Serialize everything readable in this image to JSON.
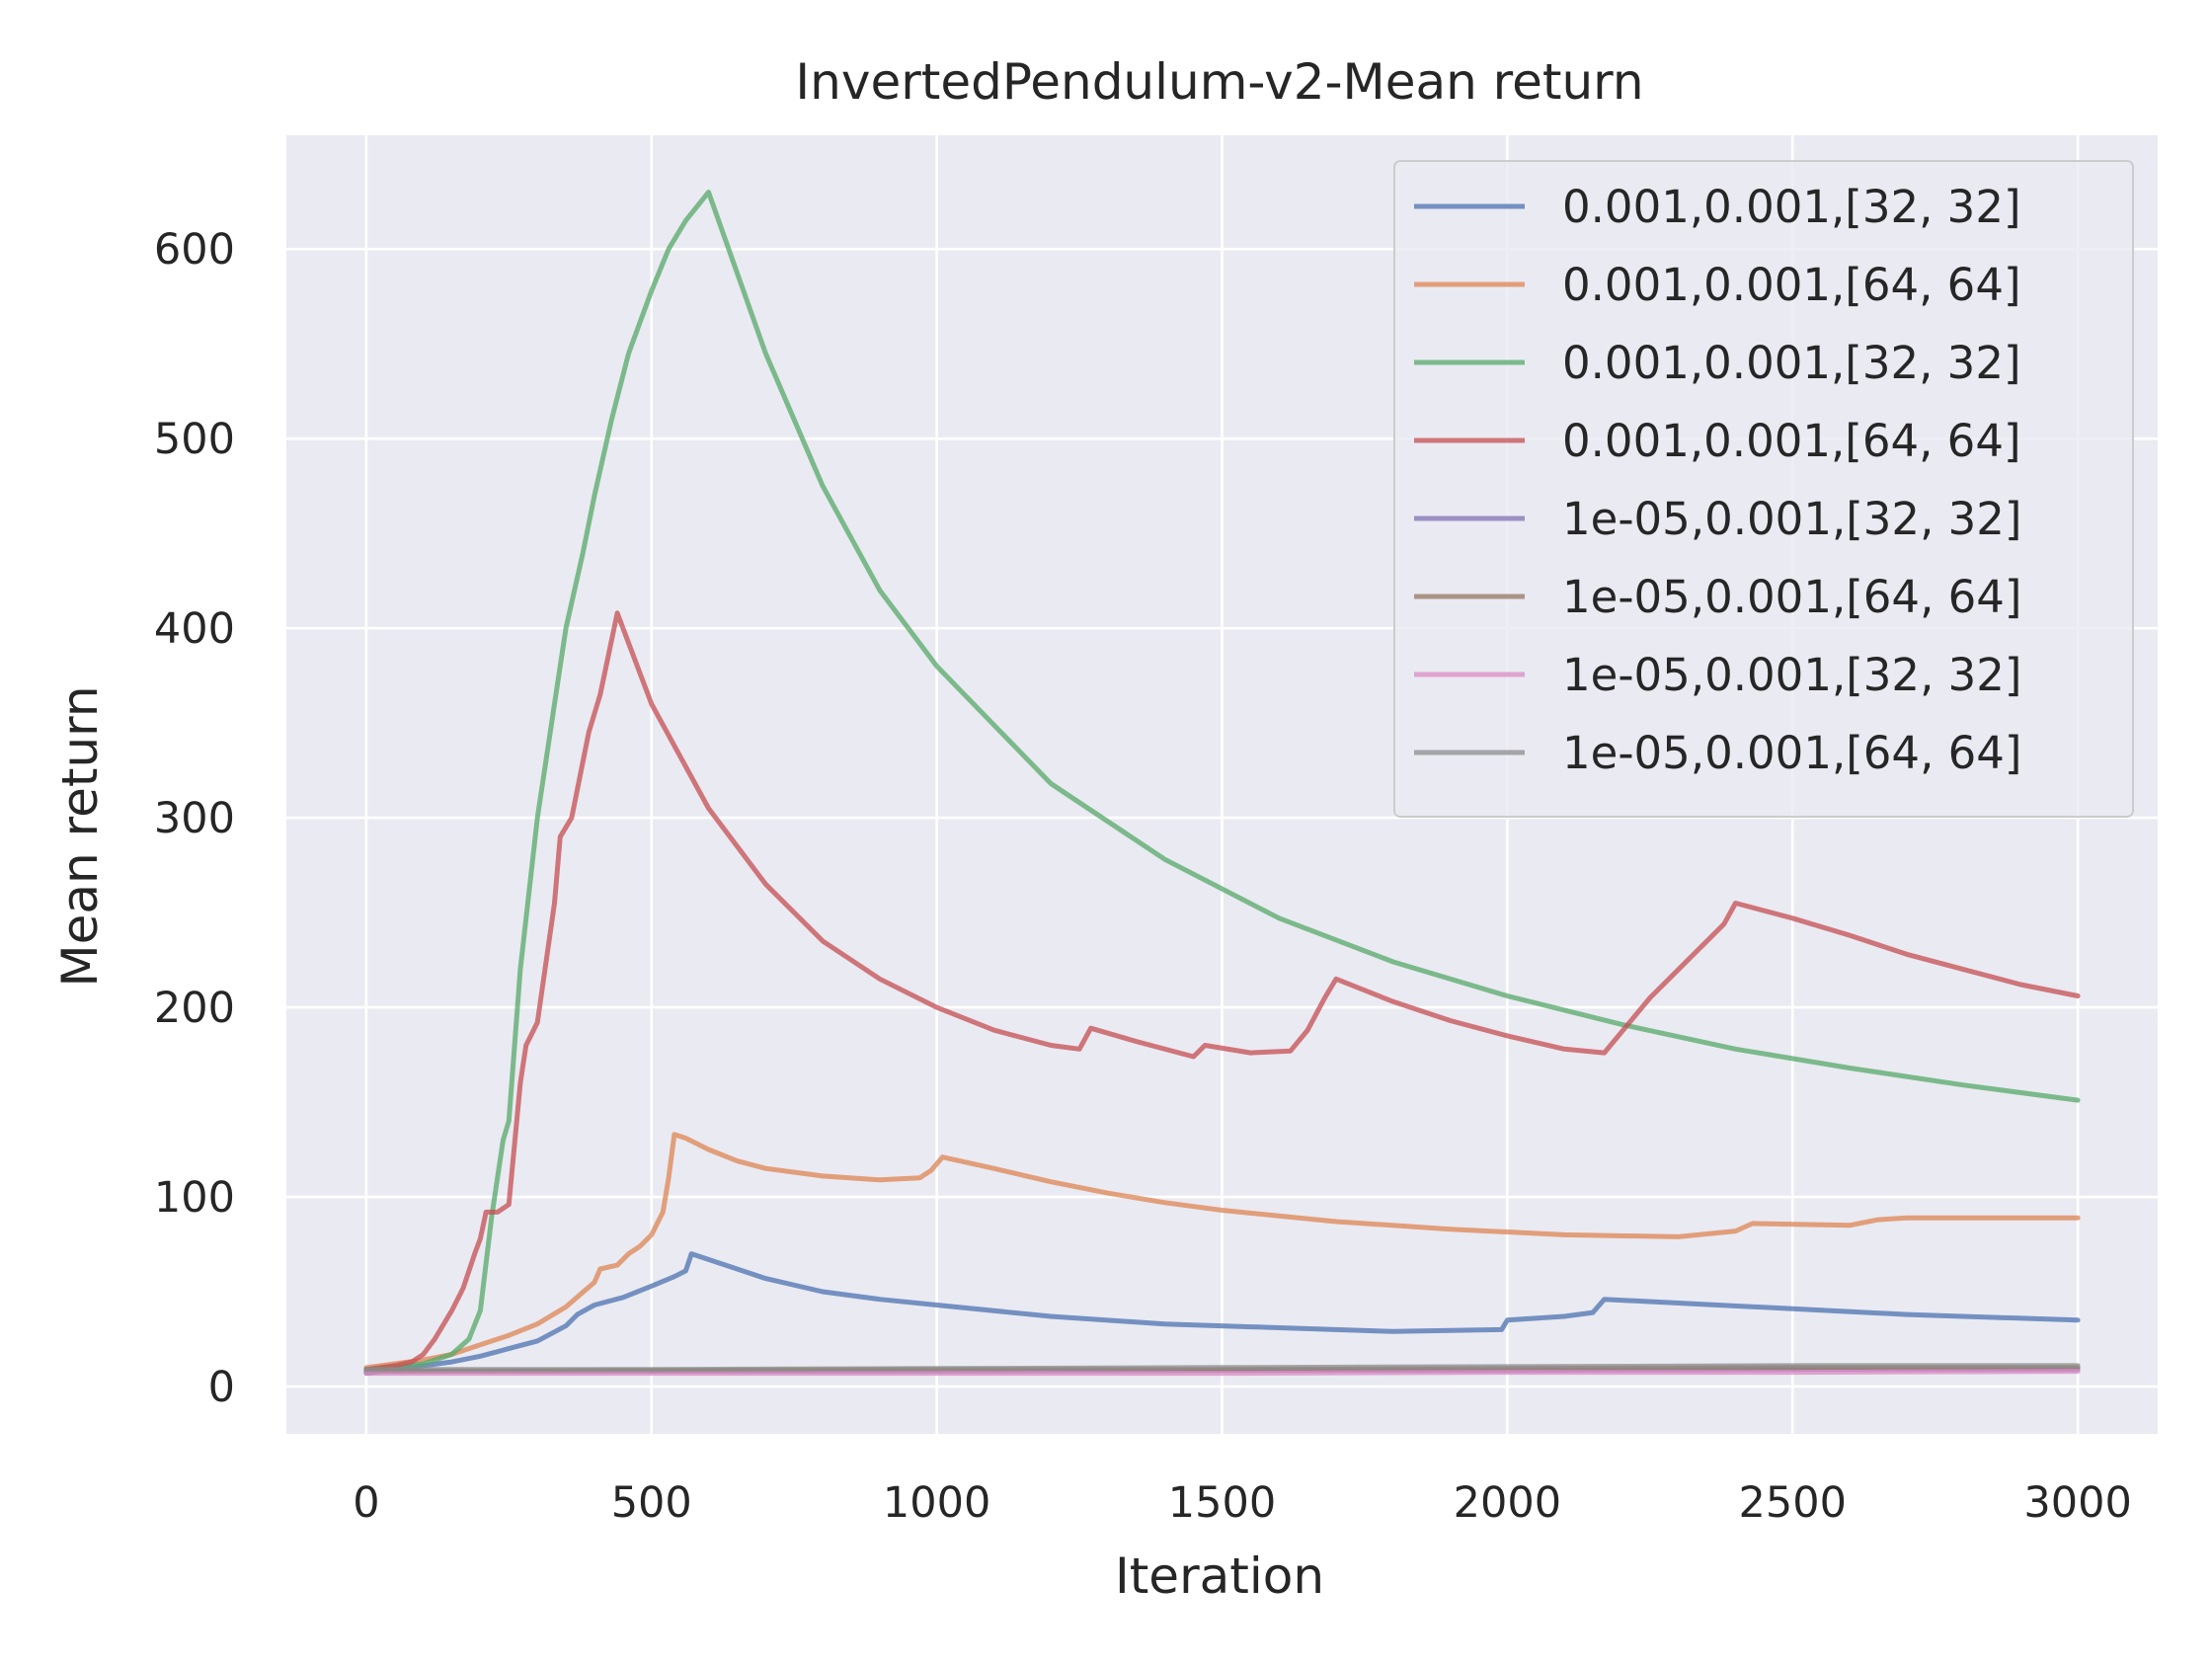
{
  "chart_data": {
    "type": "line",
    "title": "InvertedPendulum-v2-Mean return",
    "xlabel": "Iteration",
    "ylabel": "Mean return",
    "xlim": [
      -140,
      3140
    ],
    "ylim": [
      -25,
      660
    ],
    "xticks": [
      0,
      500,
      1000,
      1500,
      2000,
      2500,
      3000
    ],
    "yticks": [
      0,
      100,
      200,
      300,
      400,
      500,
      600
    ],
    "grid": true,
    "legend_position": "top-right",
    "series": [
      {
        "name": "0.001,0.001,[32, 32]",
        "color": "#4c72b0",
        "points": [
          [
            0,
            7
          ],
          [
            50,
            9
          ],
          [
            100,
            11
          ],
          [
            150,
            13
          ],
          [
            200,
            16
          ],
          [
            250,
            20
          ],
          [
            300,
            24
          ],
          [
            350,
            32
          ],
          [
            370,
            38
          ],
          [
            400,
            43
          ],
          [
            450,
            47
          ],
          [
            500,
            53
          ],
          [
            540,
            58
          ],
          [
            560,
            61
          ],
          [
            570,
            70
          ],
          [
            600,
            67
          ],
          [
            700,
            57
          ],
          [
            800,
            50
          ],
          [
            900,
            46
          ],
          [
            1000,
            43
          ],
          [
            1200,
            37
          ],
          [
            1400,
            33
          ],
          [
            1600,
            31
          ],
          [
            1800,
            29
          ],
          [
            1990,
            30
          ],
          [
            2000,
            35
          ],
          [
            2100,
            37
          ],
          [
            2150,
            39
          ],
          [
            2170,
            46
          ],
          [
            2300,
            44
          ],
          [
            2500,
            41
          ],
          [
            2700,
            38
          ],
          [
            3000,
            35
          ]
        ]
      },
      {
        "name": "0.001,0.001,[64, 64]",
        "color": "#dd8452",
        "points": [
          [
            0,
            10
          ],
          [
            50,
            12
          ],
          [
            100,
            14
          ],
          [
            150,
            17
          ],
          [
            200,
            22
          ],
          [
            250,
            27
          ],
          [
            300,
            33
          ],
          [
            350,
            42
          ],
          [
            400,
            55
          ],
          [
            410,
            62
          ],
          [
            440,
            64
          ],
          [
            460,
            70
          ],
          [
            480,
            74
          ],
          [
            500,
            80
          ],
          [
            520,
            92
          ],
          [
            530,
            110
          ],
          [
            540,
            133
          ],
          [
            560,
            131
          ],
          [
            600,
            125
          ],
          [
            650,
            119
          ],
          [
            700,
            115
          ],
          [
            800,
            111
          ],
          [
            900,
            109
          ],
          [
            970,
            110
          ],
          [
            990,
            114
          ],
          [
            1010,
            121
          ],
          [
            1100,
            115
          ],
          [
            1200,
            108
          ],
          [
            1300,
            102
          ],
          [
            1400,
            97
          ],
          [
            1500,
            93
          ],
          [
            1700,
            87
          ],
          [
            1900,
            83
          ],
          [
            2100,
            80
          ],
          [
            2300,
            79
          ],
          [
            2400,
            82
          ],
          [
            2430,
            86
          ],
          [
            2600,
            85
          ],
          [
            2650,
            88
          ],
          [
            2700,
            89
          ],
          [
            3000,
            89
          ]
        ]
      },
      {
        "name": "0.001,0.001,[32, 32]",
        "color": "#55a868",
        "points": [
          [
            0,
            9
          ],
          [
            50,
            10
          ],
          [
            100,
            12
          ],
          [
            150,
            17
          ],
          [
            180,
            25
          ],
          [
            200,
            40
          ],
          [
            220,
            90
          ],
          [
            240,
            130
          ],
          [
            250,
            140
          ],
          [
            270,
            220
          ],
          [
            300,
            300
          ],
          [
            330,
            360
          ],
          [
            350,
            400
          ],
          [
            380,
            440
          ],
          [
            400,
            470
          ],
          [
            430,
            510
          ],
          [
            460,
            545
          ],
          [
            500,
            578
          ],
          [
            530,
            600
          ],
          [
            560,
            615
          ],
          [
            600,
            630
          ],
          [
            700,
            545
          ],
          [
            800,
            475
          ],
          [
            900,
            420
          ],
          [
            1000,
            380
          ],
          [
            1200,
            318
          ],
          [
            1400,
            278
          ],
          [
            1600,
            247
          ],
          [
            1800,
            224
          ],
          [
            2000,
            206
          ],
          [
            2200,
            191
          ],
          [
            2400,
            178
          ],
          [
            2600,
            168
          ],
          [
            2800,
            159
          ],
          [
            3000,
            151
          ]
        ]
      },
      {
        "name": "0.001,0.001,[64, 64]",
        "color": "#c44e52",
        "points": [
          [
            0,
            9
          ],
          [
            50,
            11
          ],
          [
            80,
            13
          ],
          [
            100,
            17
          ],
          [
            120,
            25
          ],
          [
            150,
            40
          ],
          [
            170,
            52
          ],
          [
            190,
            70
          ],
          [
            200,
            78
          ],
          [
            210,
            92
          ],
          [
            230,
            92
          ],
          [
            250,
            96
          ],
          [
            270,
            160
          ],
          [
            280,
            180
          ],
          [
            300,
            192
          ],
          [
            330,
            255
          ],
          [
            340,
            290
          ],
          [
            360,
            300
          ],
          [
            390,
            345
          ],
          [
            410,
            365
          ],
          [
            440,
            408
          ],
          [
            500,
            360
          ],
          [
            600,
            305
          ],
          [
            700,
            265
          ],
          [
            800,
            235
          ],
          [
            900,
            215
          ],
          [
            1000,
            200
          ],
          [
            1100,
            188
          ],
          [
            1200,
            180
          ],
          [
            1250,
            178
          ],
          [
            1270,
            189
          ],
          [
            1350,
            182
          ],
          [
            1450,
            174
          ],
          [
            1470,
            180
          ],
          [
            1550,
            176
          ],
          [
            1620,
            177
          ],
          [
            1650,
            188
          ],
          [
            1680,
            205
          ],
          [
            1700,
            215
          ],
          [
            1800,
            203
          ],
          [
            1900,
            193
          ],
          [
            2000,
            185
          ],
          [
            2100,
            178
          ],
          [
            2170,
            176
          ],
          [
            2250,
            205
          ],
          [
            2300,
            220
          ],
          [
            2380,
            244
          ],
          [
            2400,
            255
          ],
          [
            2500,
            247
          ],
          [
            2600,
            238
          ],
          [
            2700,
            228
          ],
          [
            2800,
            220
          ],
          [
            2900,
            212
          ],
          [
            3000,
            206
          ]
        ]
      },
      {
        "name": "1e-05,0.001,[32, 32]",
        "color": "#8172b3",
        "points": [
          [
            0,
            8
          ],
          [
            500,
            8
          ],
          [
            1000,
            8
          ],
          [
            1500,
            8.5
          ],
          [
            2000,
            8.5
          ],
          [
            2500,
            9
          ],
          [
            3000,
            9
          ]
        ]
      },
      {
        "name": "1e-05,0.001,[64, 64]",
        "color": "#937860",
        "points": [
          [
            0,
            8
          ],
          [
            500,
            8.5
          ],
          [
            1000,
            9
          ],
          [
            1500,
            9
          ],
          [
            2000,
            9.5
          ],
          [
            2500,
            10
          ],
          [
            3000,
            10
          ]
        ]
      },
      {
        "name": "1e-05,0.001,[32, 32]",
        "color": "#da8bc3",
        "points": [
          [
            0,
            7
          ],
          [
            500,
            7
          ],
          [
            1000,
            7
          ],
          [
            1500,
            7
          ],
          [
            2000,
            7.5
          ],
          [
            2500,
            7.5
          ],
          [
            3000,
            8
          ]
        ]
      },
      {
        "name": "1e-05,0.001,[64, 64]",
        "color": "#8c8c8c",
        "points": [
          [
            0,
            9
          ],
          [
            500,
            9
          ],
          [
            1000,
            9.5
          ],
          [
            1500,
            10
          ],
          [
            2000,
            10.5
          ],
          [
            2500,
            11
          ],
          [
            3000,
            11
          ]
        ]
      }
    ]
  }
}
